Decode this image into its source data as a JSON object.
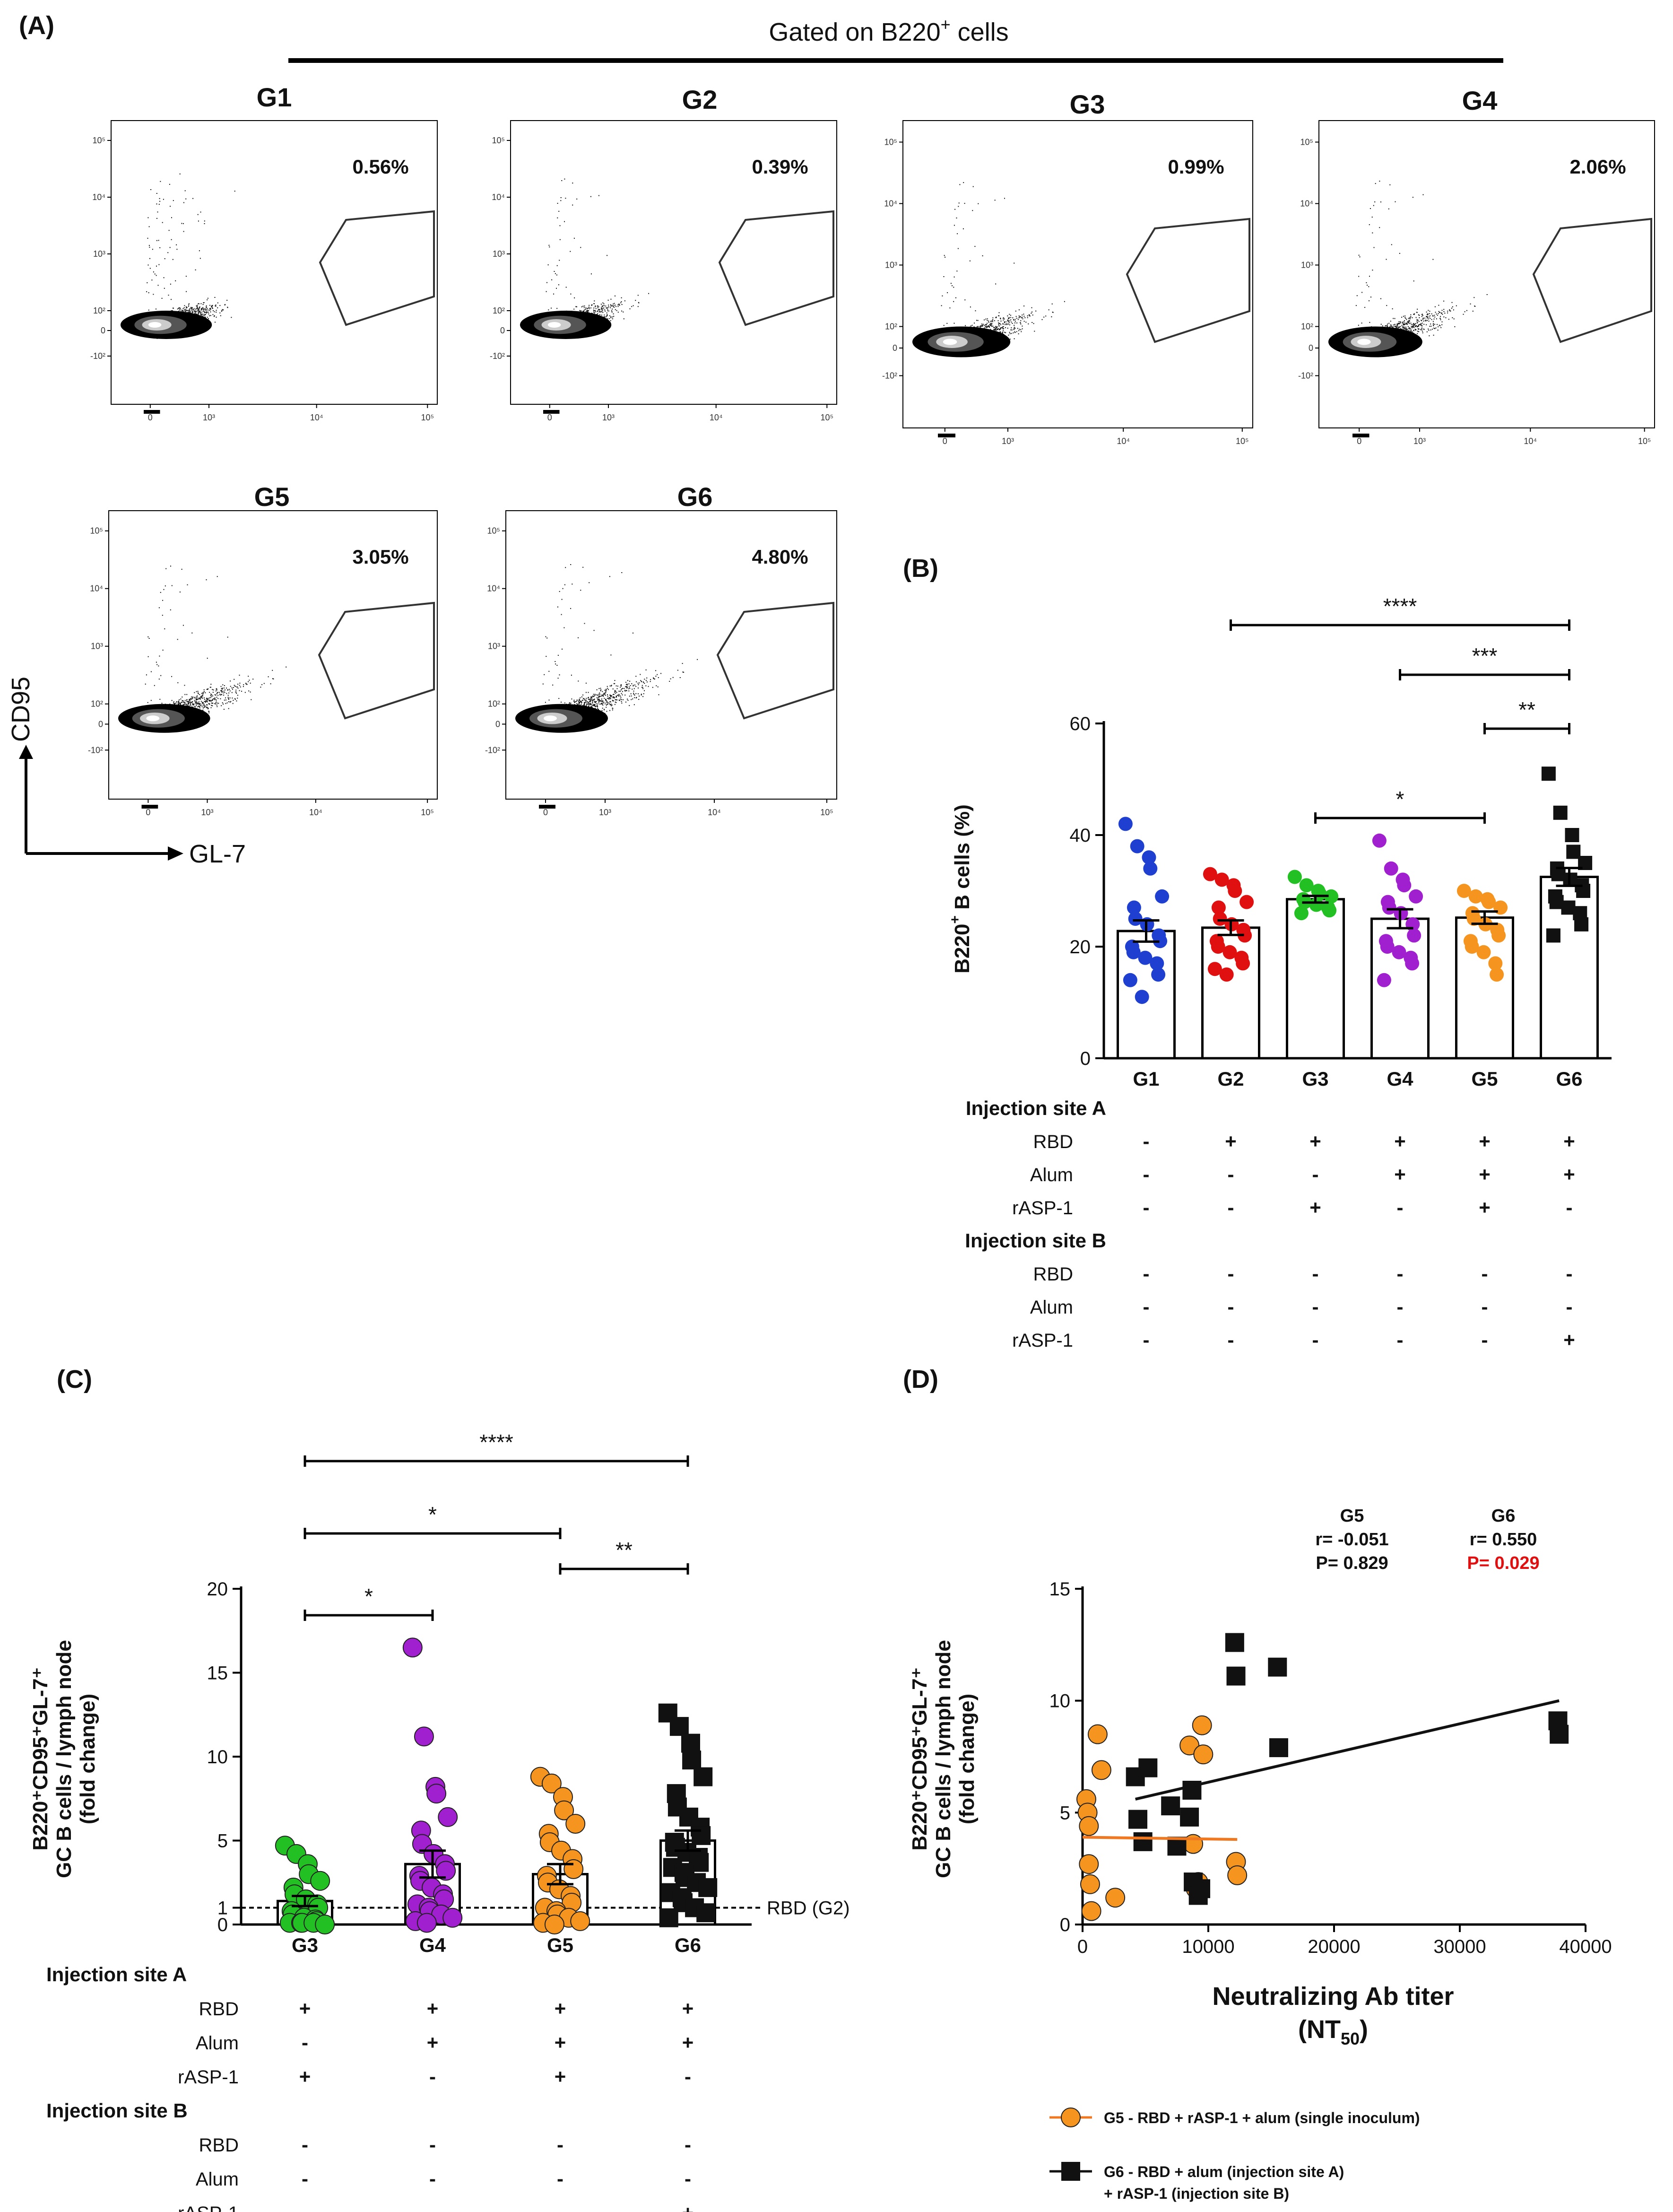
{
  "figure": {
    "panel_labels": [
      "(A)",
      "(B)",
      "(C)",
      "(D)"
    ],
    "gate_header": "Gated on B220",
    "gate_header_sup": "+",
    "gate_header_tail": " cells",
    "flow_axis_y": "CD95",
    "flow_axis_x": "GL-7"
  },
  "flow_plots": [
    {
      "name": "G1",
      "percent": "0.56%"
    },
    {
      "name": "G2",
      "percent": "0.39%"
    },
    {
      "name": "G3",
      "percent": "0.99%"
    },
    {
      "name": "G4",
      "percent": "2.06%"
    },
    {
      "name": "G5",
      "percent": "3.05%"
    },
    {
      "name": "G6",
      "percent": "4.80%"
    }
  ],
  "flow_ticks": {
    "y": [
      "10⁵",
      "10⁴",
      "10³",
      "10²",
      "0",
      "-10²"
    ],
    "x": [
      "0",
      "10³",
      "10⁴",
      "10⁵"
    ]
  },
  "treatment_table": {
    "header_a": "Injection site A",
    "header_b": "Injection site B",
    "row_labels": [
      "RBD",
      "Alum",
      "rASP-1"
    ],
    "panel_b": {
      "a": {
        "RBD": [
          "-",
          "+",
          "+",
          "+",
          "+",
          "+"
        ],
        "Alum": [
          "-",
          "-",
          "-",
          "+",
          "+",
          "+"
        ],
        "rASP-1": [
          "-",
          "-",
          "+",
          "-",
          "+",
          "-"
        ]
      },
      "b": {
        "RBD": [
          "-",
          "-",
          "-",
          "-",
          "-",
          "-"
        ],
        "Alum": [
          "-",
          "-",
          "-",
          "-",
          "-",
          "-"
        ],
        "rASP-1": [
          "-",
          "-",
          "-",
          "-",
          "-",
          "+"
        ]
      }
    },
    "panel_c": {
      "a": {
        "RBD": [
          "+",
          "+",
          "+",
          "+"
        ],
        "Alum": [
          "-",
          "+",
          "+",
          "+"
        ],
        "rASP-1": [
          "+",
          "-",
          "+",
          "-"
        ]
      },
      "b": {
        "RBD": [
          "-",
          "-",
          "-",
          "-"
        ],
        "Alum": [
          "-",
          "-",
          "-",
          "-"
        ],
        "rASP-1": [
          "-",
          "-",
          "-",
          "+"
        ]
      }
    }
  },
  "colors": {
    "G1": "#1f3fd0",
    "G2": "#e01010",
    "G3": "#22c022",
    "G4": "#a020d0",
    "G5": "#f5941e",
    "G6": "#111111",
    "fit_G5": "#f07820",
    "fit_G6": "#111111",
    "p_significant": "#e01010"
  },
  "chart_data": [
    {
      "id": "B",
      "type": "bar",
      "title": "",
      "ylabel_main": "B220",
      "ylabel_sup": "+",
      "ylabel_tail": " B cells (%)",
      "ylim": [
        0,
        60
      ],
      "yticks": [
        "0",
        "20",
        "40",
        "60"
      ],
      "categories": [
        "G1",
        "G2",
        "G3",
        "G4",
        "G5",
        "G6"
      ],
      "means": [
        22.8,
        23.4,
        28.5,
        25.0,
        25.2,
        32.5
      ],
      "sem": [
        1.9,
        1.3,
        0.6,
        1.7,
        1.1,
        1.6
      ],
      "points": [
        [
          42,
          38,
          36,
          34,
          29,
          27,
          25,
          24,
          22,
          21,
          20,
          19,
          18,
          17,
          15,
          14,
          11
        ],
        [
          33,
          32,
          31,
          30,
          28,
          27,
          25,
          24,
          23,
          22,
          21,
          20,
          19,
          18,
          17,
          16,
          15
        ],
        [
          32.5,
          31,
          30,
          29.5,
          29,
          28.5,
          28,
          27.5,
          27,
          26.5,
          26
        ],
        [
          39,
          34,
          32,
          31,
          29,
          28,
          27,
          26,
          24,
          22,
          21,
          20,
          19,
          18,
          17,
          14
        ],
        [
          30,
          29,
          28.5,
          28,
          27,
          26,
          25,
          24,
          23,
          22,
          21,
          20,
          19,
          17,
          15
        ],
        [
          51,
          44,
          40,
          37,
          35,
          34,
          33,
          32,
          31,
          30,
          29,
          28,
          27,
          26,
          24,
          22
        ]
      ],
      "significance": [
        {
          "from": "G2",
          "to": "G6",
          "label": "****"
        },
        {
          "from": "G4",
          "to": "G6",
          "label": "***"
        },
        {
          "from": "G5",
          "to": "G6",
          "label": "**"
        },
        {
          "from": "G3",
          "to": "G5",
          "label": "*"
        }
      ]
    },
    {
      "id": "C",
      "type": "bar",
      "ylabel_lines": [
        "B220⁺CD95⁺GL-7⁺",
        "GC B cells / lymph node",
        "(fold change)"
      ],
      "ylim": [
        0,
        20
      ],
      "yticks": [
        "0",
        "1",
        "5",
        "10",
        "15",
        "20"
      ],
      "categories": [
        "G3",
        "G4",
        "G5",
        "G6"
      ],
      "means": [
        1.4,
        3.6,
        3.0,
        5.0
      ],
      "sem": [
        0.3,
        0.8,
        0.6,
        0.6
      ],
      "reference_line": {
        "value": 1,
        "label": "RBD (G2)"
      },
      "points": [
        [
          4.7,
          4.2,
          3.6,
          3.0,
          2.6,
          2.2,
          1.8,
          1.5,
          1.2,
          1.0,
          0.8,
          0.6,
          0.4,
          0.3,
          0.2,
          0.1,
          0.1,
          0.1,
          0.1,
          0.0
        ],
        [
          16.5,
          11.2,
          8.2,
          7.8,
          6.4,
          5.6,
          4.8,
          4.2,
          3.6,
          3.2,
          2.9,
          2.6,
          2.2,
          1.8,
          1.5,
          1.2,
          1.0,
          0.8,
          0.6,
          0.4,
          0.2,
          0.1
        ],
        [
          8.8,
          8.4,
          7.6,
          6.8,
          6.0,
          5.4,
          4.9,
          4.4,
          3.9,
          3.3,
          2.9,
          2.5,
          2.1,
          1.7,
          1.3,
          1.0,
          0.8,
          0.6,
          0.4,
          0.2,
          0.1,
          0.0
        ],
        [
          12.6,
          11.8,
          10.8,
          9.8,
          8.8,
          7.8,
          7.0,
          6.4,
          5.8,
          5.3,
          4.9,
          4.6,
          4.3,
          4.0,
          3.7,
          3.4,
          3.1,
          2.8,
          2.5,
          2.2,
          1.9,
          1.6,
          1.3,
          1.0,
          0.7,
          0.4
        ]
      ],
      "significance": [
        {
          "from": "G3",
          "to": "G6",
          "label": "****"
        },
        {
          "from": "G3",
          "to": "G5",
          "label": "*"
        },
        {
          "from": "G5",
          "to": "G6",
          "label": "**"
        },
        {
          "from": "G3",
          "to": "G4",
          "label": "*"
        }
      ]
    },
    {
      "id": "D",
      "type": "scatter",
      "ylabel_lines": [
        "B220⁺CD95⁺GL-7⁺",
        "GC B cells / lymph node",
        "(fold change)"
      ],
      "xlabel_lines": [
        "Neutralizing Ab titer",
        "(NT"
      ],
      "xlabel_sub": "50",
      "xlabel_close": ")",
      "xlim": [
        0,
        40000
      ],
      "ylim": [
        0,
        15
      ],
      "xticks": [
        "0",
        "10000",
        "20000",
        "30000",
        "40000"
      ],
      "yticks": [
        "0",
        "5",
        "10",
        "15"
      ],
      "series": [
        {
          "name": "G5 - RBD + rASP-1 + alum (single inoculum)",
          "marker": "circle",
          "x": [
            300,
            400,
            500,
            500,
            600,
            700,
            1200,
            1500,
            2600,
            8500,
            8800,
            9000,
            9200,
            9500,
            9600,
            12200,
            12300
          ],
          "y": [
            5.6,
            5.0,
            4.4,
            2.7,
            1.8,
            0.6,
            8.5,
            6.9,
            1.2,
            8.0,
            3.6,
            1.6,
            1.9,
            8.9,
            7.6,
            2.8,
            2.2
          ],
          "fit_x": [
            0,
            12300
          ],
          "fit_y": [
            3.9,
            3.8
          ],
          "label": "G5",
          "r": "r= -0.051",
          "p": "P= 0.829"
        },
        {
          "name": "G6 - RBD + alum (injection site A) + rASP-1 (injection site B)",
          "marker": "square",
          "x": [
            4200,
            4400,
            4800,
            5200,
            7000,
            7500,
            8500,
            8700,
            8800,
            9200,
            9400,
            12100,
            12200,
            15500,
            15600,
            37800,
            37900
          ],
          "y": [
            6.6,
            4.7,
            3.7,
            7.0,
            5.3,
            3.5,
            4.8,
            6.0,
            1.9,
            1.3,
            1.6,
            12.6,
            11.1,
            11.5,
            7.9,
            9.1,
            8.5
          ],
          "fit_x": [
            4200,
            37900
          ],
          "fit_y": [
            5.6,
            10.0
          ],
          "label": "G6",
          "r": "r= 0.550",
          "p": "P= 0.029"
        }
      ],
      "legend": [
        "G5 - RBD + rASP-1 + alum (single inoculum)",
        "G6 - RBD + alum (injection site A)",
        "+ rASP-1 (injection site B)"
      ]
    }
  ]
}
